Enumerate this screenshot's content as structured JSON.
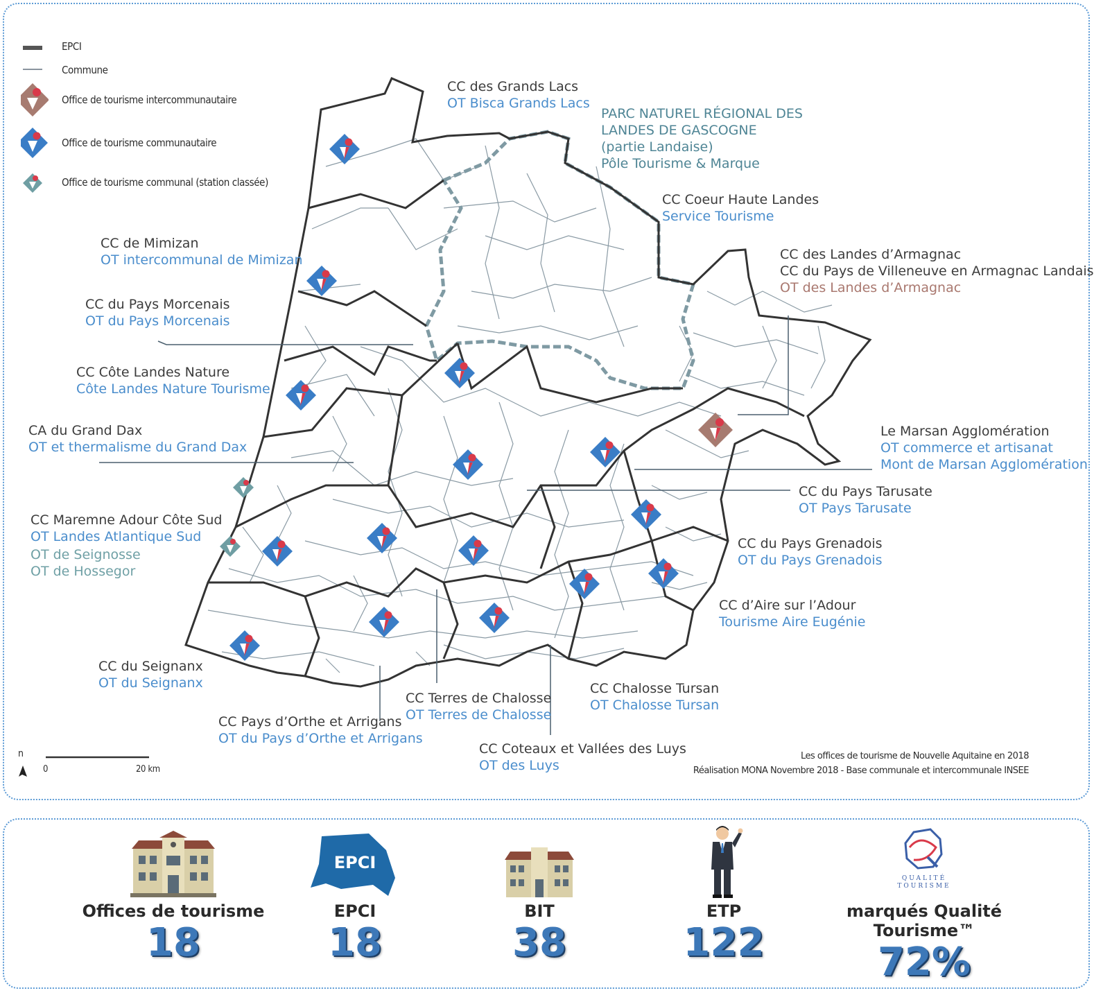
{
  "legend": {
    "epci": "EPCI",
    "commune": "Commune",
    "ot_intercommunautaire": "Office de tourisme intercommunautaire",
    "ot_communautaire": "Office de tourisme communautaire",
    "ot_communal": "Office de tourisme communal (station classée)"
  },
  "labels": {
    "grands_lacs": {
      "name": "CC des Grands Lacs",
      "ot": "OT Bisca Grands Lacs"
    },
    "parc": {
      "l1": "PARC NATUREL RÉGIONAL DES",
      "l2": "LANDES DE GASCOGNE",
      "l3": "(partie Landaise)",
      "l4": "Pôle Tourisme & Marque"
    },
    "coeur": {
      "name": "CC Coeur Haute Landes",
      "ot": "Service Tourisme"
    },
    "armagnac": {
      "name1": "CC des Landes d’Armagnac",
      "name2": "CC du Pays de Villeneuve en Armagnac Landais",
      "ot": "OT des Landes d’Armagnac"
    },
    "mimizan": {
      "name": "CC de Mimizan",
      "ot": "OT intercommunal de Mimizan"
    },
    "morcenais": {
      "name": "CC du Pays Morcenais",
      "ot": "OT du Pays Morcenais"
    },
    "cote_landes": {
      "name": "CC Côte Landes Nature",
      "ot": "Côte Landes Nature Tourisme"
    },
    "grand_dax": {
      "name": "CA du Grand Dax",
      "ot": "OT et thermalisme du Grand Dax"
    },
    "marsan": {
      "name": "Le Marsan Agglomération",
      "ot1": "OT commerce et artisanat",
      "ot2": "Mont de Marsan Agglomération"
    },
    "tarusate": {
      "name": "CC du Pays Tarusate",
      "ot": "OT Pays Tarusate"
    },
    "maremne": {
      "name": "CC Maremne Adour Côte Sud",
      "ot": "OT Landes Atlantique Sud",
      "ot2": "OT de Seignosse",
      "ot3": "OT de Hossegor"
    },
    "grenadois": {
      "name": "CC du Pays Grenadois",
      "ot": "OT du Pays Grenadois"
    },
    "aire": {
      "name": "CC d’Aire sur l’Adour",
      "ot": "Tourisme Aire Eugénie"
    },
    "seignanx": {
      "name": "CC du Seignanx",
      "ot": "OT du Seignanx"
    },
    "chalosse_tursan": {
      "name": "CC Chalosse Tursan",
      "ot": "OT Chalosse Tursan"
    },
    "terres_chalosse": {
      "name": "CC Terres de Chalosse",
      "ot": "OT Terres de Chalosse"
    },
    "orthe": {
      "name": "CC Pays d’Orthe et Arrigans",
      "ot": "OT du Pays d’Orthe et Arrigans"
    },
    "luys": {
      "name": "CC Coteaux et Vallées des Luys",
      "ot": "OT des Luys"
    }
  },
  "scale": {
    "north": "n",
    "zero": "0",
    "end": "20 km"
  },
  "credits": {
    "line1": "Les offices de tourisme de Nouvelle Aquitaine en 2018",
    "line2": "Réalisation MONA Novembre 2018 - Base communale et intercommunale INSEE"
  },
  "stats": [
    {
      "title": "Offices de tourisme",
      "value": "18"
    },
    {
      "title": "EPCI",
      "value": "18",
      "badge": "EPCI"
    },
    {
      "title": "BIT",
      "value": "38"
    },
    {
      "title": "ETP",
      "value": "122"
    },
    {
      "title": "marqués Qualité Tourisme™",
      "value": "72%",
      "logo1": "QUALITÉ",
      "logo2": "TOURISME"
    }
  ],
  "colors": {
    "communautaire_blue": "#3a7dc6",
    "communautaire_red": "#d93a4a",
    "intercommunautaire": "#a77b70",
    "communal": "#6f9ea3",
    "parc_boundary": "#7f9aa3",
    "stat_value": "#3d78b8"
  }
}
